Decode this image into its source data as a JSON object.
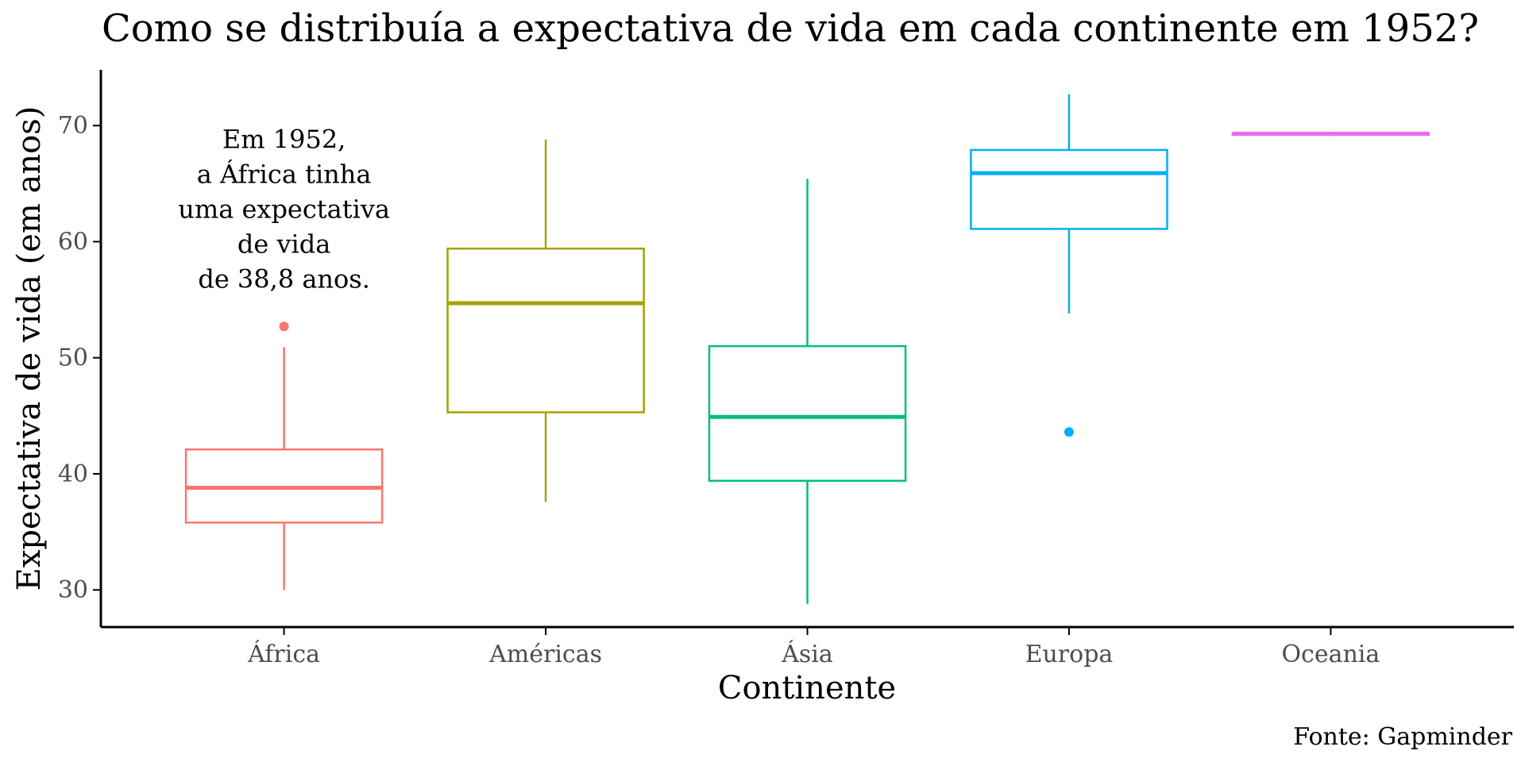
{
  "chart_data": {
    "type": "boxplot",
    "title": "Como se distribuía a expectativa de vida em cada continente em 1952?",
    "xlabel": "Continente",
    "ylabel": "Expectativa de vida (em anos)",
    "caption": "Fonte: Gapminder",
    "ylim": [
      26.8,
      74.8
    ],
    "yticks": [
      30,
      40,
      50,
      60,
      70
    ],
    "grid": false,
    "legend": "none",
    "categories": [
      "África",
      "Américas",
      "Ásia",
      "Europa",
      "Oceania"
    ],
    "boxes": [
      {
        "category": "África",
        "color": "#F8766D",
        "whisker_low": 30.0,
        "q1": 35.8,
        "median": 38.8,
        "q3": 42.1,
        "whisker_high": 50.9,
        "outliers": [
          52.7
        ]
      },
      {
        "category": "Américas",
        "color": "#A3A500",
        "whisker_low": 37.6,
        "q1": 45.3,
        "median": 54.7,
        "q3": 59.4,
        "whisker_high": 68.8,
        "outliers": []
      },
      {
        "category": "Ásia",
        "color": "#00BF7D",
        "whisker_low": 28.8,
        "q1": 39.4,
        "median": 44.9,
        "q3": 51.0,
        "whisker_high": 65.4,
        "outliers": []
      },
      {
        "category": "Europa",
        "color": "#00B0F6",
        "whisker_low": 53.8,
        "q1": 61.1,
        "median": 65.9,
        "q3": 67.9,
        "whisker_high": 72.7,
        "outliers": [
          43.6
        ]
      },
      {
        "category": "Oceania",
        "color": "#E76BF3",
        "whisker_low": 69.1,
        "q1": 69.2,
        "median": 69.3,
        "q3": 69.3,
        "whisker_high": 69.4,
        "outliers": []
      }
    ],
    "annotation": {
      "category": "África",
      "y": 62.8,
      "lines": [
        "Em 1952,",
        "a África tinha",
        "uma expectativa",
        "de vida",
        "de 38,8 anos."
      ]
    }
  }
}
